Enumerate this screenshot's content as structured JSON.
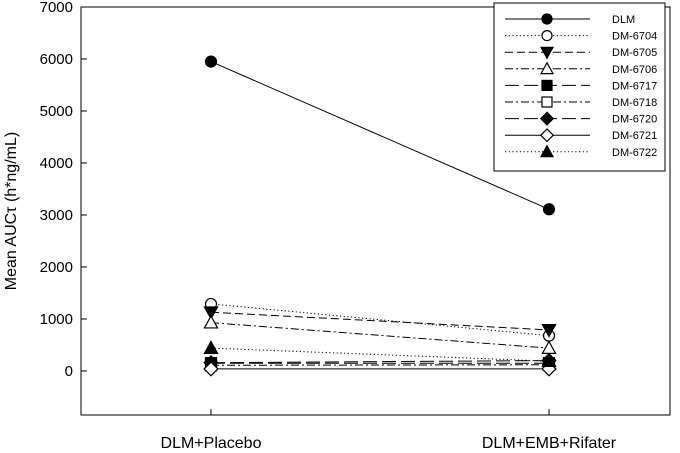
{
  "chart_data": {
    "type": "line",
    "ylabel": "Mean AUCτ (h*ng/mL)",
    "xlabel": "",
    "categories": [
      "DLM+Placebo",
      "DLM+EMB+Rifater"
    ],
    "ylim": [
      0,
      7000
    ],
    "yticks": [
      0,
      1000,
      2000,
      3000,
      4000,
      5000,
      6000,
      7000
    ],
    "grid": false,
    "legend_position": "top-right",
    "series": [
      {
        "name": "DLM",
        "values": [
          5950,
          3110
        ],
        "marker": "circle",
        "filled": true,
        "dash": "solid"
      },
      {
        "name": "DM-6704",
        "values": [
          1290,
          680
        ],
        "marker": "circle",
        "filled": false,
        "dash": "dotted"
      },
      {
        "name": "DM-6705",
        "values": [
          1130,
          790
        ],
        "marker": "tri-down",
        "filled": true,
        "dash": "dashed"
      },
      {
        "name": "DM-6706",
        "values": [
          930,
          440
        ],
        "marker": "tri-up",
        "filled": false,
        "dash": "dashdot"
      },
      {
        "name": "DM-6717",
        "values": [
          150,
          150
        ],
        "marker": "square",
        "filled": true,
        "dash": "longdash"
      },
      {
        "name": "DM-6718",
        "values": [
          110,
          120
        ],
        "marker": "square",
        "filled": false,
        "dash": "dashdot"
      },
      {
        "name": "DM-6720",
        "values": [
          160,
          200
        ],
        "marker": "diamond",
        "filled": true,
        "dash": "longdash"
      },
      {
        "name": "DM-6721",
        "values": [
          40,
          40
        ],
        "marker": "diamond",
        "filled": false,
        "dash": "solid"
      },
      {
        "name": "DM-6722",
        "values": [
          440,
          190
        ],
        "marker": "tri-up",
        "filled": true,
        "dash": "dotted"
      }
    ]
  }
}
